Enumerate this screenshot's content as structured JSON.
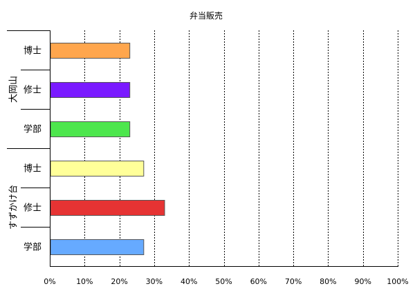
{
  "chart_data": {
    "type": "bar",
    "orientation": "horizontal",
    "title": "弁当販売",
    "xlabel": "",
    "ylabel": "",
    "xlim": [
      0,
      100
    ],
    "x_unit": "%",
    "x_ticks": [
      "0%",
      "10%",
      "20%",
      "30%",
      "40%",
      "50%",
      "60%",
      "70%",
      "80%",
      "90%",
      "100%"
    ],
    "grid": "vertical-dashed",
    "legend": "none",
    "groups": [
      {
        "name": "大岡山",
        "categories": [
          {
            "label": "博士",
            "value": 23,
            "color": "#ffa64d"
          },
          {
            "label": "修士",
            "value": 23,
            "color": "#7a1aff"
          },
          {
            "label": "学部",
            "value": 23,
            "color": "#4de64d"
          }
        ]
      },
      {
        "name": "すずかけ台",
        "categories": [
          {
            "label": "博士",
            "value": 27,
            "color": "#ffff99"
          },
          {
            "label": "修士",
            "value": 33,
            "color": "#e63333"
          },
          {
            "label": "学部",
            "value": 27,
            "color": "#66aaff"
          }
        ]
      }
    ]
  }
}
